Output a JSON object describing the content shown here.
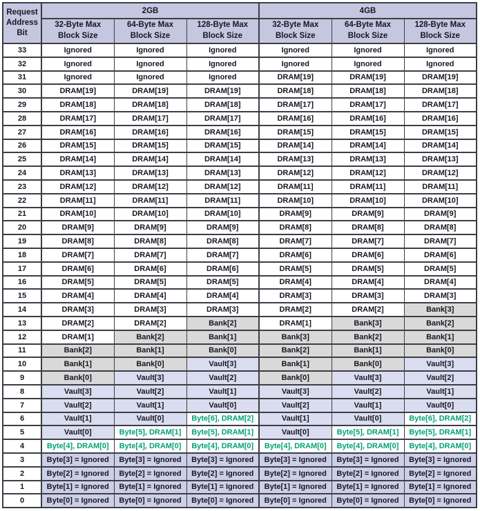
{
  "colors": {
    "page_bg": "#ffffff",
    "header_bg": "#c5c6e0",
    "gray_bg": "#d9d9d9",
    "vault_bg": "#dadcf0",
    "ignored_bg": "#cdcfe9",
    "green_text": "#00a173",
    "text": "#16161e",
    "border": "#3c3c44"
  },
  "table": {
    "corner_header": "Request\nAddress\nBit",
    "groups": [
      "2GB",
      "4GB"
    ],
    "sub_headers": [
      "32-Byte Max\nBlock Size",
      "64-Byte Max\nBlock Size",
      "128-Byte Max\nBlock Size"
    ],
    "rows": [
      {
        "bit": "33",
        "cells": [
          [
            "Ignored",
            "w"
          ],
          [
            "Ignored",
            "w"
          ],
          [
            "Ignored",
            "w"
          ],
          [
            "Ignored",
            "w"
          ],
          [
            "Ignored",
            "w"
          ],
          [
            "Ignored",
            "w"
          ]
        ]
      },
      {
        "bit": "32",
        "cells": [
          [
            "Ignored",
            "w"
          ],
          [
            "Ignored",
            "w"
          ],
          [
            "Ignored",
            "w"
          ],
          [
            "Ignored",
            "w"
          ],
          [
            "Ignored",
            "w"
          ],
          [
            "Ignored",
            "w"
          ]
        ]
      },
      {
        "bit": "31",
        "cells": [
          [
            "Ignored",
            "w"
          ],
          [
            "Ignored",
            "w"
          ],
          [
            "Ignored",
            "w"
          ],
          [
            "DRAM[19]",
            "w"
          ],
          [
            "DRAM[19]",
            "w"
          ],
          [
            "DRAM[19]",
            "w"
          ]
        ]
      },
      {
        "bit": "30",
        "cells": [
          [
            "DRAM[19]",
            "w"
          ],
          [
            "DRAM[19]",
            "w"
          ],
          [
            "DRAM[19]",
            "w"
          ],
          [
            "DRAM[18]",
            "w"
          ],
          [
            "DRAM[18]",
            "w"
          ],
          [
            "DRAM[18]",
            "w"
          ]
        ]
      },
      {
        "bit": "29",
        "cells": [
          [
            "DRAM[18]",
            "w"
          ],
          [
            "DRAM[18]",
            "w"
          ],
          [
            "DRAM[18]",
            "w"
          ],
          [
            "DRAM[17]",
            "w"
          ],
          [
            "DRAM[17]",
            "w"
          ],
          [
            "DRAM[17]",
            "w"
          ]
        ]
      },
      {
        "bit": "28",
        "cells": [
          [
            "DRAM[17]",
            "w"
          ],
          [
            "DRAM[17]",
            "w"
          ],
          [
            "DRAM[17]",
            "w"
          ],
          [
            "DRAM[16]",
            "w"
          ],
          [
            "DRAM[16]",
            "w"
          ],
          [
            "DRAM[16]",
            "w"
          ]
        ]
      },
      {
        "bit": "27",
        "cells": [
          [
            "DRAM[16]",
            "w"
          ],
          [
            "DRAM[16]",
            "w"
          ],
          [
            "DRAM[16]",
            "w"
          ],
          [
            "DRAM[15]",
            "w"
          ],
          [
            "DRAM[15]",
            "w"
          ],
          [
            "DRAM[15]",
            "w"
          ]
        ]
      },
      {
        "bit": "26",
        "cells": [
          [
            "DRAM[15]",
            "w"
          ],
          [
            "DRAM[15]",
            "w"
          ],
          [
            "DRAM[15]",
            "w"
          ],
          [
            "DRAM[14]",
            "w"
          ],
          [
            "DRAM[14]",
            "w"
          ],
          [
            "DRAM[14]",
            "w"
          ]
        ]
      },
      {
        "bit": "25",
        "cells": [
          [
            "DRAM[14]",
            "w"
          ],
          [
            "DRAM[14]",
            "w"
          ],
          [
            "DRAM[14]",
            "w"
          ],
          [
            "DRAM[13]",
            "w"
          ],
          [
            "DRAM[13]",
            "w"
          ],
          [
            "DRAM[13]",
            "w"
          ]
        ]
      },
      {
        "bit": "24",
        "cells": [
          [
            "DRAM[13]",
            "w"
          ],
          [
            "DRAM[13]",
            "w"
          ],
          [
            "DRAM[13]",
            "w"
          ],
          [
            "DRAM[12]",
            "w"
          ],
          [
            "DRAM[12]",
            "w"
          ],
          [
            "DRAM[12]",
            "w"
          ]
        ]
      },
      {
        "bit": "23",
        "cells": [
          [
            "DRAM[12]",
            "w"
          ],
          [
            "DRAM[12]",
            "w"
          ],
          [
            "DRAM[12]",
            "w"
          ],
          [
            "DRAM[11]",
            "w"
          ],
          [
            "DRAM[11]",
            "w"
          ],
          [
            "DRAM[11]",
            "w"
          ]
        ]
      },
      {
        "bit": "22",
        "cells": [
          [
            "DRAM[11]",
            "w"
          ],
          [
            "DRAM[11]",
            "w"
          ],
          [
            "DRAM[11]",
            "w"
          ],
          [
            "DRAM[10]",
            "w"
          ],
          [
            "DRAM[10]",
            "w"
          ],
          [
            "DRAM[10]",
            "w"
          ]
        ]
      },
      {
        "bit": "21",
        "cells": [
          [
            "DRAM[10]",
            "w"
          ],
          [
            "DRAM[10]",
            "w"
          ],
          [
            "DRAM[10]",
            "w"
          ],
          [
            "DRAM[9]",
            "w"
          ],
          [
            "DRAM[9]",
            "w"
          ],
          [
            "DRAM[9]",
            "w"
          ]
        ]
      },
      {
        "bit": "20",
        "cells": [
          [
            "DRAM[9]",
            "w"
          ],
          [
            "DRAM[9]",
            "w"
          ],
          [
            "DRAM[9]",
            "w"
          ],
          [
            "DRAM[8]",
            "w"
          ],
          [
            "DRAM[8]",
            "w"
          ],
          [
            "DRAM[8]",
            "w"
          ]
        ]
      },
      {
        "bit": "19",
        "cells": [
          [
            "DRAM[8]",
            "w"
          ],
          [
            "DRAM[8]",
            "w"
          ],
          [
            "DRAM[8]",
            "w"
          ],
          [
            "DRAM[7]",
            "w"
          ],
          [
            "DRAM[7]",
            "w"
          ],
          [
            "DRAM[7]",
            "w"
          ]
        ]
      },
      {
        "bit": "18",
        "cells": [
          [
            "DRAM[7]",
            "w"
          ],
          [
            "DRAM[7]",
            "w"
          ],
          [
            "DRAM[7]",
            "w"
          ],
          [
            "DRAM[6]",
            "w"
          ],
          [
            "DRAM[6]",
            "w"
          ],
          [
            "DRAM[6]",
            "w"
          ]
        ]
      },
      {
        "bit": "17",
        "cells": [
          [
            "DRAM[6]",
            "w"
          ],
          [
            "DRAM[6]",
            "w"
          ],
          [
            "DRAM[6]",
            "w"
          ],
          [
            "DRAM[5]",
            "w"
          ],
          [
            "DRAM[5]",
            "w"
          ],
          [
            "DRAM[5]",
            "w"
          ]
        ]
      },
      {
        "bit": "16",
        "cells": [
          [
            "DRAM[5]",
            "w"
          ],
          [
            "DRAM[5]",
            "w"
          ],
          [
            "DRAM[5]",
            "w"
          ],
          [
            "DRAM[4]",
            "w"
          ],
          [
            "DRAM[4]",
            "w"
          ],
          [
            "DRAM[4]",
            "w"
          ]
        ]
      },
      {
        "bit": "15",
        "cells": [
          [
            "DRAM[4]",
            "w"
          ],
          [
            "DRAM[4]",
            "w"
          ],
          [
            "DRAM[4]",
            "w"
          ],
          [
            "DRAM[3]",
            "w"
          ],
          [
            "DRAM[3]",
            "w"
          ],
          [
            "DRAM[3]",
            "w"
          ]
        ]
      },
      {
        "bit": "14",
        "cells": [
          [
            "DRAM[3]",
            "w"
          ],
          [
            "DRAM[3]",
            "w"
          ],
          [
            "DRAM[3]",
            "w"
          ],
          [
            "DRAM[2]",
            "w"
          ],
          [
            "DRAM[2]",
            "w"
          ],
          [
            "Bank[3]",
            "g"
          ]
        ]
      },
      {
        "bit": "13",
        "cells": [
          [
            "DRAM[2]",
            "w"
          ],
          [
            "DRAM[2]",
            "w"
          ],
          [
            "Bank[2]",
            "g"
          ],
          [
            "DRAM[1]",
            "w"
          ],
          [
            "Bank[3]",
            "g"
          ],
          [
            "Bank[2]",
            "g"
          ]
        ]
      },
      {
        "bit": "12",
        "cells": [
          [
            "DRAM[1]",
            "w"
          ],
          [
            "Bank[2]",
            "g"
          ],
          [
            "Bank[1]",
            "g"
          ],
          [
            "Bank[3]",
            "g"
          ],
          [
            "Bank[2]",
            "g"
          ],
          [
            "Bank[1]",
            "g"
          ]
        ]
      },
      {
        "bit": "11",
        "cells": [
          [
            "Bank[2]",
            "g"
          ],
          [
            "Bank[1]",
            "g"
          ],
          [
            "Bank[0]",
            "g"
          ],
          [
            "Bank[2]",
            "g"
          ],
          [
            "Bank[1]",
            "g"
          ],
          [
            "Bank[0]",
            "g"
          ]
        ]
      },
      {
        "bit": "10",
        "cells": [
          [
            "Bank[1]",
            "g"
          ],
          [
            "Bank[0]",
            "g"
          ],
          [
            "Vault[3]",
            "v"
          ],
          [
            "Bank[1]",
            "g"
          ],
          [
            "Bank[0]",
            "g"
          ],
          [
            "Vault[3]",
            "v"
          ]
        ]
      },
      {
        "bit": "9",
        "cells": [
          [
            "Bank[0]",
            "g"
          ],
          [
            "Vault[3]",
            "v"
          ],
          [
            "Vault[2]",
            "v"
          ],
          [
            "Bank[0]",
            "g"
          ],
          [
            "Vault[3]",
            "v"
          ],
          [
            "Vault[2]",
            "v"
          ]
        ]
      },
      {
        "bit": "8",
        "cells": [
          [
            "Vault[3]",
            "v"
          ],
          [
            "Vault[2]",
            "v"
          ],
          [
            "Vault[1]",
            "v"
          ],
          [
            "Vault[3]",
            "v"
          ],
          [
            "Vault[2]",
            "v"
          ],
          [
            "Vault[1]",
            "v"
          ]
        ]
      },
      {
        "bit": "7",
        "cells": [
          [
            "Vault[2]",
            "v"
          ],
          [
            "Vault[1]",
            "v"
          ],
          [
            "Vault[0]",
            "v"
          ],
          [
            "Vault[2]",
            "v"
          ],
          [
            "Vault[1]",
            "v"
          ],
          [
            "Vault[0]",
            "v"
          ]
        ]
      },
      {
        "bit": "6",
        "cells": [
          [
            "Vault[1]",
            "v"
          ],
          [
            "Vault[0]",
            "v"
          ],
          [
            "Byte[6], DRAM[2]",
            "G"
          ],
          [
            "Vault[1]",
            "v"
          ],
          [
            "Vault[0]",
            "v"
          ],
          [
            "Byte[6], DRAM[2]",
            "G"
          ]
        ]
      },
      {
        "bit": "5",
        "cells": [
          [
            "Vault[0]",
            "v"
          ],
          [
            "Byte[5], DRAM[1]",
            "G"
          ],
          [
            "Byte[5], DRAM[1]",
            "G"
          ],
          [
            "Vault[0]",
            "v"
          ],
          [
            "Byte[5], DRAM[1]",
            "G"
          ],
          [
            "Byte[5], DRAM[1]",
            "G"
          ]
        ]
      },
      {
        "bit": "4",
        "cells": [
          [
            "Byte[4], DRAM[0]",
            "G"
          ],
          [
            "Byte[4], DRAM[0]",
            "G"
          ],
          [
            "Byte[4], DRAM[0]",
            "G"
          ],
          [
            "Byte[4], DRAM[0]",
            "G"
          ],
          [
            "Byte[4], DRAM[0]",
            "G"
          ],
          [
            "Byte[4], DRAM[0]",
            "G"
          ]
        ]
      },
      {
        "bit": "3",
        "cells": [
          [
            "Byte[3] = Ignored",
            "i"
          ],
          [
            "Byte[3] = Ignored",
            "i"
          ],
          [
            "Byte[3] = Ignored",
            "i"
          ],
          [
            "Byte[3] = Ignored",
            "i"
          ],
          [
            "Byte[3] = Ignored",
            "i"
          ],
          [
            "Byte[3] = Ignored",
            "i"
          ]
        ]
      },
      {
        "bit": "2",
        "cells": [
          [
            "Byte[2] = Ignored",
            "i"
          ],
          [
            "Byte[2] = Ignored",
            "i"
          ],
          [
            "Byte[2] = Ignored",
            "i"
          ],
          [
            "Byte[2] = Ignored",
            "i"
          ],
          [
            "Byte[2] = Ignored",
            "i"
          ],
          [
            "Byte[2] = Ignored",
            "i"
          ]
        ]
      },
      {
        "bit": "1",
        "cells": [
          [
            "Byte[1] = Ignored",
            "i"
          ],
          [
            "Byte[1] = Ignored",
            "i"
          ],
          [
            "Byte[1] = Ignored",
            "i"
          ],
          [
            "Byte[1] = Ignored",
            "i"
          ],
          [
            "Byte[1] = Ignored",
            "i"
          ],
          [
            "Byte[1] = Ignored",
            "i"
          ]
        ]
      },
      {
        "bit": "0",
        "cells": [
          [
            "Byte[0] = Ignored",
            "i"
          ],
          [
            "Byte[0] = Ignored",
            "i"
          ],
          [
            "Byte[0] = Ignored",
            "i"
          ],
          [
            "Byte[0] = Ignored",
            "i"
          ],
          [
            "Byte[0] = Ignored",
            "i"
          ],
          [
            "Byte[0] = Ignored",
            "i"
          ]
        ]
      }
    ]
  }
}
